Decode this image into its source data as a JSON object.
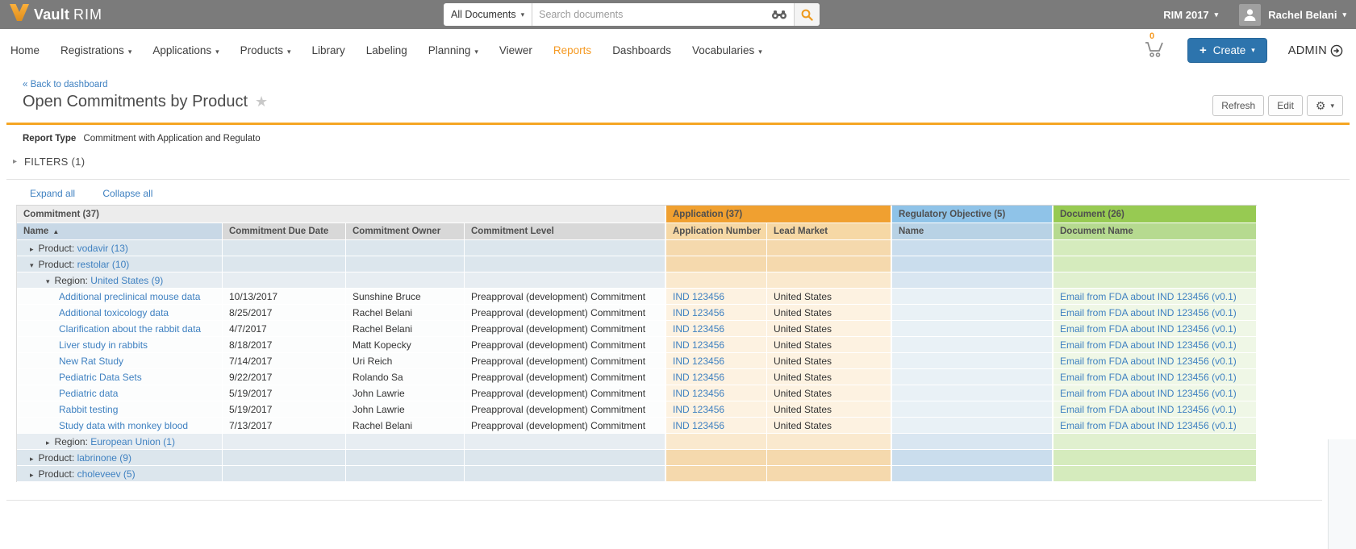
{
  "topbar": {
    "brand_bold": "Vault",
    "brand_light": "RIM",
    "search_scope": "All Documents",
    "search_placeholder": "Search documents",
    "vault_selector": "RIM 2017",
    "user_name": "Rachel Belani"
  },
  "nav": {
    "items": [
      {
        "label": "Home",
        "caret": false,
        "active": false
      },
      {
        "label": "Registrations",
        "caret": true,
        "active": false
      },
      {
        "label": "Applications",
        "caret": true,
        "active": false
      },
      {
        "label": "Products",
        "caret": true,
        "active": false
      },
      {
        "label": "Library",
        "caret": false,
        "active": false
      },
      {
        "label": "Labeling",
        "caret": false,
        "active": false
      },
      {
        "label": "Planning",
        "caret": true,
        "active": false
      },
      {
        "label": "Viewer",
        "caret": false,
        "active": false
      },
      {
        "label": "Reports",
        "caret": false,
        "active": true
      },
      {
        "label": "Dashboards",
        "caret": false,
        "active": false
      },
      {
        "label": "Vocabularies",
        "caret": true,
        "active": false
      }
    ],
    "cart_count": "0",
    "create_label": "Create",
    "admin_label": "ADMIN"
  },
  "page": {
    "back_link": "« Back to dashboard",
    "title": "Open Commitments by Product",
    "refresh_button": "Refresh",
    "edit_button": "Edit",
    "report_type_label": "Report Type",
    "report_type_value": "Commitment with Application and Regulato",
    "filters_label": "FILTERS (1)",
    "expand_all": "Expand all",
    "collapse_all": "Collapse all"
  },
  "table": {
    "groups": [
      {
        "label": "Commitment (37)"
      },
      {
        "label": "Application (37)"
      },
      {
        "label": "Regulatory Objective (5)"
      },
      {
        "label": "Document (26)"
      }
    ],
    "columns": [
      "Name",
      "Commitment Due Date",
      "Commitment Owner",
      "Commitment Level",
      "Application Number",
      "Lead Market",
      "Name",
      "Document Name"
    ],
    "sort_column": "Name",
    "sort_indicator": "▲",
    "rows": [
      {
        "type": "product",
        "caret": "▸",
        "prefix": "Product:",
        "link": "vodavir (13)"
      },
      {
        "type": "product",
        "caret": "▾",
        "prefix": "Product:",
        "link": "restolar (10)"
      },
      {
        "type": "region",
        "caret": "▾",
        "prefix": "Region:",
        "link": "United States (9)"
      },
      {
        "type": "data",
        "name": "Additional preclinical mouse data",
        "due": "10/13/2017",
        "owner": "Sunshine Bruce",
        "level": "Preapproval (development) Commitment",
        "app_number": "IND 123456",
        "lead_market": "United States",
        "ro_name": "",
        "doc_name": "Email from FDA about IND 123456 (v0.1)"
      },
      {
        "type": "data",
        "name": "Additional toxicology data",
        "due": "8/25/2017",
        "owner": "Rachel Belani",
        "level": "Preapproval (development) Commitment",
        "app_number": "IND 123456",
        "lead_market": "United States",
        "ro_name": "",
        "doc_name": "Email from FDA about IND 123456 (v0.1)"
      },
      {
        "type": "data",
        "name": "Clarification about the rabbit data",
        "due": "4/7/2017",
        "owner": "Rachel Belani",
        "level": "Preapproval (development) Commitment",
        "app_number": "IND 123456",
        "lead_market": "United States",
        "ro_name": "",
        "doc_name": "Email from FDA about IND 123456 (v0.1)"
      },
      {
        "type": "data",
        "name": "Liver study in rabbits",
        "due": "8/18/2017",
        "owner": "Matt Kopecky",
        "level": "Preapproval (development) Commitment",
        "app_number": "IND 123456",
        "lead_market": "United States",
        "ro_name": "",
        "doc_name": "Email from FDA about IND 123456 (v0.1)"
      },
      {
        "type": "data",
        "name": "New Rat Study",
        "due": "7/14/2017",
        "owner": "Uri Reich",
        "level": "Preapproval (development) Commitment",
        "app_number": "IND 123456",
        "lead_market": "United States",
        "ro_name": "",
        "doc_name": "Email from FDA about IND 123456 (v0.1)"
      },
      {
        "type": "data",
        "name": "Pediatric Data Sets",
        "due": "9/22/2017",
        "owner": "Rolando Sa",
        "level": "Preapproval (development) Commitment",
        "app_number": "IND 123456",
        "lead_market": "United States",
        "ro_name": "",
        "doc_name": "Email from FDA about IND 123456 (v0.1)"
      },
      {
        "type": "data",
        "name": "Pediatric data",
        "due": "5/19/2017",
        "owner": "John Lawrie",
        "level": "Preapproval (development) Commitment",
        "app_number": "IND 123456",
        "lead_market": "United States",
        "ro_name": "",
        "doc_name": "Email from FDA about IND 123456 (v0.1)"
      },
      {
        "type": "data",
        "name": "Rabbit testing",
        "due": "5/19/2017",
        "owner": "John Lawrie",
        "level": "Preapproval (development) Commitment",
        "app_number": "IND 123456",
        "lead_market": "United States",
        "ro_name": "",
        "doc_name": "Email from FDA about IND 123456 (v0.1)"
      },
      {
        "type": "data",
        "name": "Study data with monkey blood",
        "due": "7/13/2017",
        "owner": "Rachel Belani",
        "level": "Preapproval (development) Commitment",
        "app_number": "IND 123456",
        "lead_market": "United States",
        "ro_name": "",
        "doc_name": "Email from FDA about IND 123456 (v0.1)"
      },
      {
        "type": "region",
        "caret": "▸",
        "prefix": "Region:",
        "link": "European Union (1)"
      },
      {
        "type": "product",
        "caret": "▸",
        "prefix": "Product:",
        "link": "labrinone (9)"
      },
      {
        "type": "product",
        "caret": "▸",
        "prefix": "Product:",
        "link": "choleveev (5)"
      }
    ]
  },
  "colors": {
    "accent_orange": "#f5a623",
    "link_blue": "#3f81c1",
    "topbar_gray": "#7b7b7b",
    "create_blue": "#2d74ad",
    "application_group": "#f0a030",
    "regulatory_objective_group": "#8fc3e8",
    "document_group": "#97ca52"
  }
}
